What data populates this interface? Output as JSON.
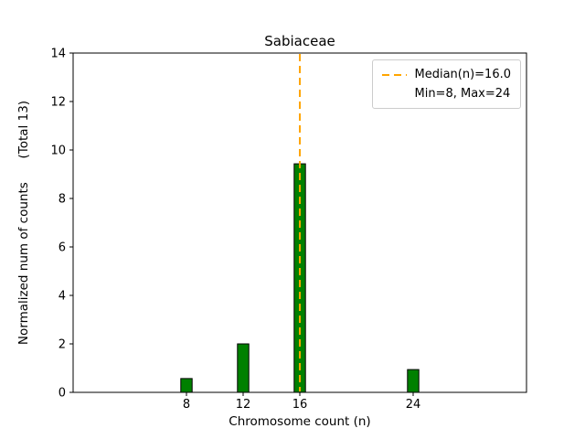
{
  "chart_data": {
    "type": "bar",
    "title": "Sabiaceae",
    "xlabel": "Chromosome count (n)",
    "ylabel": "Normalized num of counts      (Total 13)",
    "total_counts": 13,
    "categories": [
      8,
      12,
      16,
      24
    ],
    "values": [
      0.57,
      2.0,
      9.43,
      0.94
    ],
    "bar_color": "#008000",
    "bar_edge_color": "#000000",
    "bar_width": 0.8,
    "xlim": [
      0,
      32
    ],
    "ylim": [
      0,
      14
    ],
    "xticks": [
      8,
      12,
      16,
      24
    ],
    "yticks": [
      0,
      2,
      4,
      6,
      8,
      10,
      12,
      14
    ],
    "grid": false,
    "median_line": {
      "x": 16.0,
      "color": "#FFA500",
      "style": "dashed"
    },
    "min": 8,
    "max": 24,
    "legend": {
      "position": "upper right",
      "entries": [
        {
          "handle": "dashed-line",
          "color": "#FFA500",
          "label": "Median(n)=16.0"
        },
        {
          "handle": "none",
          "color": "",
          "label": "Min=8, Max=24"
        }
      ]
    }
  }
}
